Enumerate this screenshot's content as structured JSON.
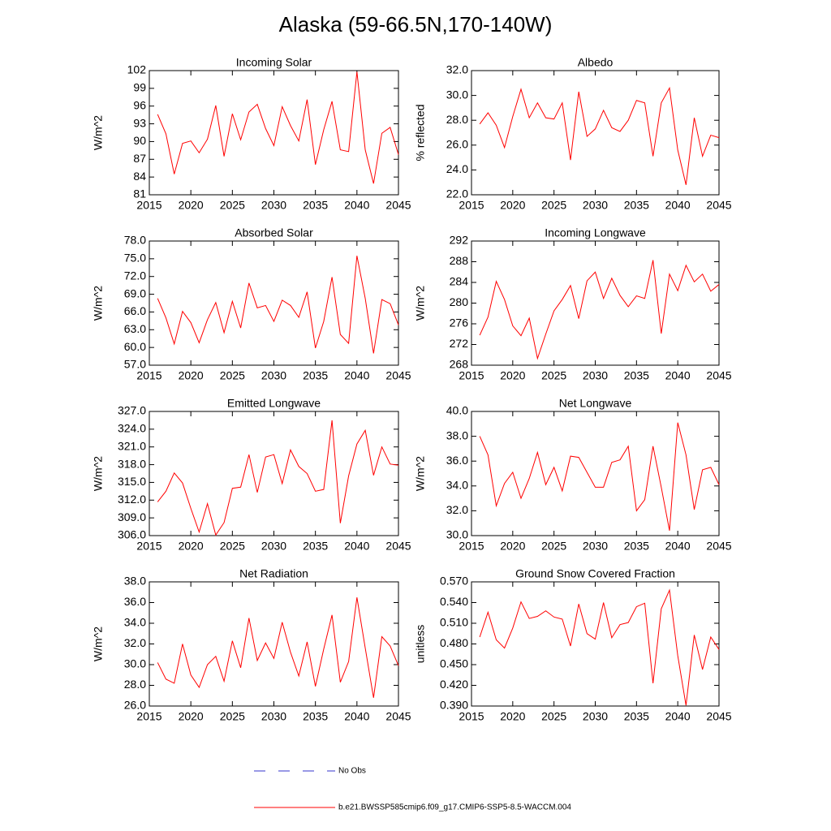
{
  "title": "Alaska (59-66.5N,170-140W)",
  "chart_data": [
    {
      "type": "line",
      "title": "Incoming Solar",
      "ylabel": "W/m^2",
      "color": "#ff0000",
      "x": [
        2016,
        2017,
        2018,
        2019,
        2020,
        2021,
        2022,
        2023,
        2024,
        2025,
        2026,
        2027,
        2028,
        2029,
        2030,
        2031,
        2032,
        2033,
        2034,
        2035,
        2036,
        2037,
        2038,
        2039,
        2040,
        2041,
        2042,
        2043,
        2044,
        2045
      ],
      "values": [
        94.6,
        91.3,
        84.5,
        89.7,
        90.1,
        88.1,
        90.4,
        96.1,
        87.5,
        94.7,
        90.3,
        95.0,
        96.3,
        92.2,
        89.3,
        95.9,
        92.7,
        90.1,
        97.1,
        86.1,
        92.0,
        96.8,
        88.6,
        88.3,
        101.8,
        88.6,
        82.9,
        91.4,
        92.4,
        87.8
      ],
      "xlim": [
        2015,
        2045
      ],
      "xticks": [
        2015,
        2020,
        2025,
        2030,
        2035,
        2040,
        2045
      ],
      "ylim": [
        81,
        102
      ],
      "yticks": [
        81,
        84,
        87,
        90,
        93,
        96,
        99,
        102
      ]
    },
    {
      "type": "line",
      "title": "Albedo",
      "ylabel": "% reflected",
      "color": "#ff0000",
      "x": [
        2016,
        2017,
        2018,
        2019,
        2020,
        2021,
        2022,
        2023,
        2024,
        2025,
        2026,
        2027,
        2028,
        2029,
        2030,
        2031,
        2032,
        2033,
        2034,
        2035,
        2036,
        2037,
        2038,
        2039,
        2040,
        2041,
        2042,
        2043,
        2044,
        2045
      ],
      "values": [
        27.7,
        28.6,
        27.6,
        25.8,
        28.3,
        30.5,
        28.2,
        29.4,
        28.2,
        28.1,
        29.4,
        24.8,
        30.3,
        26.7,
        27.3,
        28.8,
        27.4,
        27.1,
        28.0,
        29.6,
        29.4,
        25.1,
        29.4,
        30.6,
        25.6,
        22.8,
        28.2,
        25.1,
        26.8,
        26.6
      ],
      "xlim": [
        2015,
        2045
      ],
      "xticks": [
        2015,
        2020,
        2025,
        2030,
        2035,
        2040,
        2045
      ],
      "ylim": [
        22,
        32
      ],
      "yticks": [
        {
          "value": 22,
          "label": "22.0"
        },
        {
          "value": 24,
          "label": "24.0"
        },
        {
          "value": 26,
          "label": "26.0"
        },
        {
          "value": 28,
          "label": "28.0"
        },
        {
          "value": 30,
          "label": "30.0"
        },
        {
          "value": 32,
          "label": "32.0"
        }
      ]
    },
    {
      "type": "line",
      "title": "Absorbed Solar",
      "ylabel": "W/m^2",
      "color": "#ff0000",
      "x": [
        2016,
        2017,
        2018,
        2019,
        2020,
        2021,
        2022,
        2023,
        2024,
        2025,
        2026,
        2027,
        2028,
        2029,
        2030,
        2031,
        2032,
        2033,
        2034,
        2035,
        2036,
        2037,
        2038,
        2039,
        2040,
        2041,
        2042,
        2043,
        2044,
        2045
      ],
      "values": [
        68.3,
        65.0,
        60.6,
        66.1,
        64.2,
        60.8,
        64.7,
        67.6,
        62.5,
        67.8,
        63.3,
        70.9,
        66.7,
        67.1,
        64.4,
        68.0,
        67.1,
        65.1,
        69.4,
        59.9,
        64.4,
        71.9,
        62.2,
        60.7,
        75.5,
        68.3,
        59.0,
        68.1,
        67.4,
        63.8
      ],
      "xlim": [
        2015,
        2045
      ],
      "xticks": [
        2015,
        2020,
        2025,
        2030,
        2035,
        2040,
        2045
      ],
      "ylim": [
        57,
        78
      ],
      "yticks": [
        {
          "value": 57,
          "label": "57.0"
        },
        {
          "value": 60,
          "label": "60.0"
        },
        {
          "value": 63,
          "label": "63.0"
        },
        {
          "value": 66,
          "label": "66.0"
        },
        {
          "value": 69,
          "label": "69.0"
        },
        {
          "value": 72,
          "label": "72.0"
        },
        {
          "value": 75,
          "label": "75.0"
        },
        {
          "value": 78,
          "label": "78.0"
        }
      ]
    },
    {
      "type": "line",
      "title": "Incoming Longwave",
      "ylabel": "W/m^2",
      "color": "#ff0000",
      "x": [
        2016,
        2017,
        2018,
        2019,
        2020,
        2021,
        2022,
        2023,
        2024,
        2025,
        2026,
        2027,
        2028,
        2029,
        2030,
        2031,
        2032,
        2033,
        2034,
        2035,
        2036,
        2037,
        2038,
        2039,
        2040,
        2041,
        2042,
        2043,
        2044,
        2045
      ],
      "values": [
        273.8,
        277.3,
        284.2,
        280.7,
        275.6,
        273.7,
        277.1,
        269.3,
        274.0,
        278.5,
        280.7,
        283.4,
        277.0,
        284.3,
        286.0,
        280.9,
        284.8,
        281.5,
        279.3,
        281.4,
        280.9,
        288.3,
        274.1,
        285.6,
        282.4,
        287.3,
        284.1,
        285.6,
        282.3,
        283.6
      ],
      "xlim": [
        2015,
        2045
      ],
      "xticks": [
        2015,
        2020,
        2025,
        2030,
        2035,
        2040,
        2045
      ],
      "ylim": [
        268,
        292
      ],
      "yticks": [
        268,
        272,
        276,
        280,
        284,
        288,
        292
      ]
    },
    {
      "type": "line",
      "title": "Emitted Longwave",
      "ylabel": "W/m^2",
      "color": "#ff0000",
      "x": [
        2016,
        2017,
        2018,
        2019,
        2020,
        2021,
        2022,
        2023,
        2024,
        2025,
        2026,
        2027,
        2028,
        2029,
        2030,
        2031,
        2032,
        2033,
        2034,
        2035,
        2036,
        2037,
        2038,
        2039,
        2040,
        2041,
        2042,
        2043,
        2044,
        2045
      ],
      "values": [
        311.7,
        313.5,
        316.6,
        314.9,
        310.6,
        306.6,
        311.4,
        306.1,
        308.2,
        314.0,
        314.2,
        319.7,
        313.3,
        319.3,
        319.7,
        314.8,
        320.5,
        317.7,
        316.5,
        313.5,
        313.8,
        325.5,
        308.1,
        316.1,
        321.5,
        323.8,
        316.2,
        321.0,
        318.1,
        317.9
      ],
      "xlim": [
        2015,
        2045
      ],
      "xticks": [
        2015,
        2020,
        2025,
        2030,
        2035,
        2040,
        2045
      ],
      "ylim": [
        306,
        327
      ],
      "yticks": [
        {
          "value": 306,
          "label": "306.0"
        },
        {
          "value": 309,
          "label": "309.0"
        },
        {
          "value": 312,
          "label": "312.0"
        },
        {
          "value": 315,
          "label": "315.0"
        },
        {
          "value": 318,
          "label": "318.0"
        },
        {
          "value": 321,
          "label": "321.0"
        },
        {
          "value": 324,
          "label": "324.0"
        },
        {
          "value": 327,
          "label": "327.0"
        }
      ]
    },
    {
      "type": "line",
      "title": "Net Longwave",
      "ylabel": "W/m^2",
      "color": "#ff0000",
      "x": [
        2016,
        2017,
        2018,
        2019,
        2020,
        2021,
        2022,
        2023,
        2024,
        2025,
        2026,
        2027,
        2028,
        2029,
        2030,
        2031,
        2032,
        2033,
        2034,
        2035,
        2036,
        2037,
        2038,
        2039,
        2040,
        2041,
        2042,
        2043,
        2044,
        2045
      ],
      "values": [
        38.0,
        36.5,
        32.4,
        34.2,
        35.1,
        33.0,
        34.6,
        36.7,
        34.1,
        35.5,
        33.6,
        36.4,
        36.3,
        35.1,
        33.9,
        33.9,
        35.9,
        36.1,
        37.2,
        32.0,
        32.9,
        37.2,
        33.9,
        30.4,
        39.1,
        36.5,
        32.1,
        35.3,
        35.5,
        34.1
      ],
      "xlim": [
        2015,
        2045
      ],
      "xticks": [
        2015,
        2020,
        2025,
        2030,
        2035,
        2040,
        2045
      ],
      "ylim": [
        30,
        40
      ],
      "yticks": [
        {
          "value": 30,
          "label": "30.0"
        },
        {
          "value": 32,
          "label": "32.0"
        },
        {
          "value": 34,
          "label": "34.0"
        },
        {
          "value": 36,
          "label": "36.0"
        },
        {
          "value": 38,
          "label": "38.0"
        },
        {
          "value": 40,
          "label": "40.0"
        }
      ]
    },
    {
      "type": "line",
      "title": "Net Radiation",
      "ylabel": "W/m^2",
      "color": "#ff0000",
      "x": [
        2016,
        2017,
        2018,
        2019,
        2020,
        2021,
        2022,
        2023,
        2024,
        2025,
        2026,
        2027,
        2028,
        2029,
        2030,
        2031,
        2032,
        2033,
        2034,
        2035,
        2036,
        2037,
        2038,
        2039,
        2040,
        2041,
        2042,
        2043,
        2044,
        2045
      ],
      "values": [
        30.2,
        28.6,
        28.2,
        32.0,
        29.0,
        27.8,
        30.0,
        30.8,
        28.4,
        32.3,
        29.7,
        34.5,
        30.4,
        32.1,
        30.6,
        34.1,
        31.2,
        28.9,
        32.2,
        27.9,
        31.5,
        34.8,
        28.3,
        30.3,
        36.5,
        31.6,
        26.8,
        32.7,
        31.8,
        29.9
      ],
      "xlim": [
        2015,
        2045
      ],
      "xticks": [
        2015,
        2020,
        2025,
        2030,
        2035,
        2040,
        2045
      ],
      "ylim": [
        26,
        38
      ],
      "yticks": [
        {
          "value": 26,
          "label": "26.0"
        },
        {
          "value": 28,
          "label": "28.0"
        },
        {
          "value": 30,
          "label": "30.0"
        },
        {
          "value": 32,
          "label": "32.0"
        },
        {
          "value": 34,
          "label": "34.0"
        },
        {
          "value": 36,
          "label": "36.0"
        },
        {
          "value": 38,
          "label": "38.0"
        }
      ]
    },
    {
      "type": "line",
      "title": "Ground Snow Covered Fraction",
      "ylabel": "unitless",
      "color": "#ff0000",
      "x": [
        2016,
        2017,
        2018,
        2019,
        2020,
        2021,
        2022,
        2023,
        2024,
        2025,
        2026,
        2027,
        2028,
        2029,
        2030,
        2031,
        2032,
        2033,
        2034,
        2035,
        2036,
        2037,
        2038,
        2039,
        2040,
        2041,
        2042,
        2043,
        2044,
        2045
      ],
      "values": [
        0.49,
        0.526,
        0.486,
        0.474,
        0.503,
        0.541,
        0.517,
        0.52,
        0.528,
        0.519,
        0.516,
        0.477,
        0.538,
        0.495,
        0.487,
        0.54,
        0.489,
        0.508,
        0.511,
        0.534,
        0.539,
        0.423,
        0.531,
        0.558,
        0.463,
        0.391,
        0.493,
        0.443,
        0.49,
        0.472
      ],
      "xlim": [
        2015,
        2045
      ],
      "xticks": [
        2015,
        2020,
        2025,
        2030,
        2035,
        2040,
        2045
      ],
      "ylim": [
        0.39,
        0.57
      ],
      "yticks": [
        {
          "value": 0.39,
          "label": "0.390"
        },
        {
          "value": 0.42,
          "label": "0.420"
        },
        {
          "value": 0.45,
          "label": "0.450"
        },
        {
          "value": 0.48,
          "label": "0.480"
        },
        {
          "value": 0.51,
          "label": "0.510"
        },
        {
          "value": 0.54,
          "label": "0.540"
        },
        {
          "value": 0.57,
          "label": "0.570"
        }
      ]
    }
  ],
  "legend": [
    {
      "name": "No Obs",
      "color": "#3333cc",
      "dash": true
    },
    {
      "name": "b.e21.BWSSP585cmip6.f09_g17.CMIP6-SSP5-8.5-WACCM.004",
      "color": "#ff0000",
      "dash": false
    }
  ]
}
